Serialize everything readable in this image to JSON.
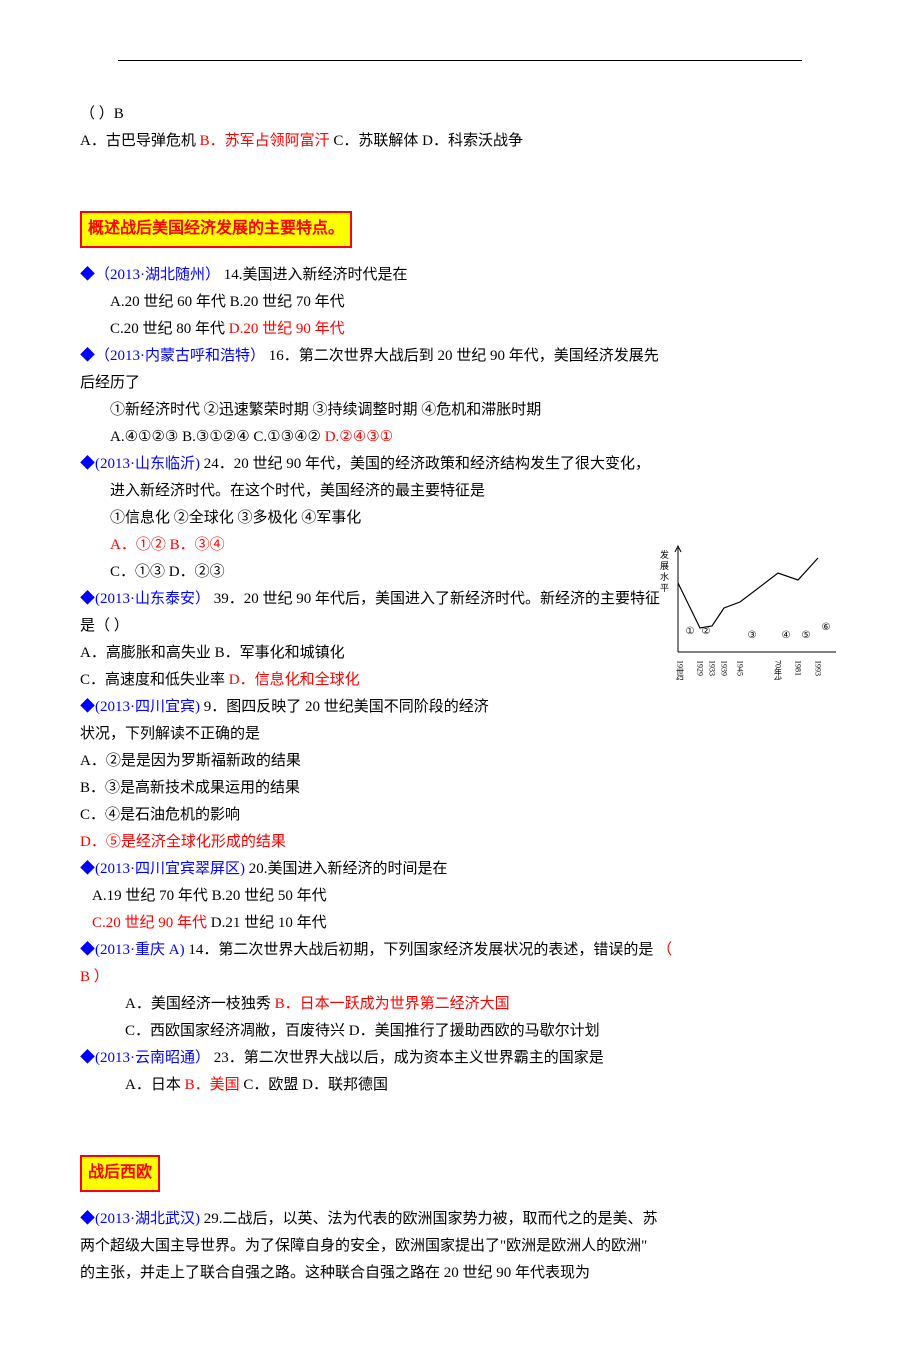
{
  "top": {
    "line1": "（    ）B",
    "line2_a": "A．古巴导弹危机        ",
    "line2_b": "B．苏军占领阿富汗",
    "line2_c": "      C．苏联解体          D．科索沃战争"
  },
  "section1_title": "概述战后美国经济发展的主要特点。",
  "q14": {
    "src": "◆（2013·湖北随州）",
    "stem": "14.美国进入新经济时代是在",
    "a": "A.20 世纪 60 年代",
    "b": "B.20 世纪 70 年代",
    "c": "C.20 世纪 80 年代",
    "d": "D.20 世纪 90 年代"
  },
  "q16": {
    "src": "◆（2013·内蒙古呼和浩特）",
    "stem1": "16．第二次世界大战后到 20 世纪 90 年代，美国经济发展先",
    "stem2": "后经历了",
    "items": "①新经济时代    ②迅速繁荣时期    ③持续调整时期    ④危机和滞胀时期",
    "a": "A.④①②③   B.③①②④    C.①③④②    ",
    "d": "D.②④③①"
  },
  "q24": {
    "src": "◆(2013·山东临沂)",
    "stem1": "24．20 世纪 90 年代，美国的经济政策和经济结构发生了很大变化，",
    "stem2": "进入新经济时代。在这个时代，美国经济的最主要特征是",
    "items": "①信息化  ②全球化  ③多极化  ④军事化",
    "ab": "A．①②      B．③④",
    "cd": "C．①③    D．②③"
  },
  "q39": {
    "src": "◆(2013·山东泰安）",
    "stem1": "39．20 世纪 90 年代后，美国进入了新经济时代。新经济的主要特征",
    "stem2": "是（    ）",
    "a": "A．高膨胀和高失业          B．军事化和城镇化",
    "c": "C．高速度和低失业率        ",
    "d": "D．信息化和全球化"
  },
  "q9": {
    "src": "◆(2013·四川宜宾)",
    "stem1": "9．图四反映了 20 世纪美国不同阶段的经济",
    "stem2": "状况，下列解读不正确的是",
    "a": "A．②是是因为罗斯福新政的结果",
    "b": "B．③是高新技术成果运用的结果",
    "c": "C．④是石油危机的影响",
    "d": "D．⑤是经济全球化形成的结果"
  },
  "q20": {
    "src": "◆(2013·四川宜宾翠屏区)",
    "stem": "20.美国进入新经济的时间是在",
    "a": "A.19 世纪 70 年代             B.20 世纪 50 年代",
    "c": "C.20 世纪 90 年代",
    "d": "             D.21 世纪 10 年代"
  },
  "q14b": {
    "src": "◆(2013·重庆 A)",
    "stem1": "14．第二次世界大战后初期，下列国家经济发展状况的表述，错误的是",
    "stem_paren": "（  ",
    "stem_b": "B",
    "stem_paren2": "）",
    "a": "A．美国经济一枝独秀              ",
    "b": "B．日本一跃成为世界第二经济大国",
    "c": "C．西欧国家经济凋敝，百废待兴    D．美国推行了援助西欧的马歇尔计划"
  },
  "q23": {
    "src": "◆(2013·云南昭通）",
    "stem": "23．第二次世界大战以后，成为资本主义世界霸主的国家是",
    "a": "A．日本            ",
    "b": "B．美国",
    "c": "           C．欧盟            D．联邦德国"
  },
  "section2_title": "战后西欧",
  "q29": {
    "src": "◆(2013·湖北武汉)",
    "l1": "29.二战后，以英、法为代表的欧洲国家势力被，取而代之的是美、苏",
    "l2": "两个超级大国主导世界。为了保障自身的安全，欧洲国家提出了\"欧洲是欧洲人的欧洲\"",
    "l3": "的主张，并走上了联合自强之路。这种联合自强之路在 20 世纪 90 年代表现为"
  },
  "chart": {
    "y_label": "发展水平",
    "x_ticks": [
      "19世纪",
      "1929",
      "1933",
      "1939",
      "1945",
      "70年代",
      "1981",
      "1993"
    ],
    "points": [
      {
        "x": 0,
        "y": 35
      },
      {
        "x": 22,
        "y": 80
      },
      {
        "x": 34,
        "y": 78
      },
      {
        "x": 46,
        "y": 60
      },
      {
        "x": 62,
        "y": 54
      },
      {
        "x": 100,
        "y": 25
      },
      {
        "x": 120,
        "y": 32
      },
      {
        "x": 140,
        "y": 10
      }
    ],
    "region_labels": [
      "①",
      "②",
      "③",
      "④",
      "⑤",
      "⑥"
    ],
    "stroke": "#000000",
    "bg": "#ffffff",
    "axis_color": "#000000",
    "width": 190,
    "height": 140
  }
}
